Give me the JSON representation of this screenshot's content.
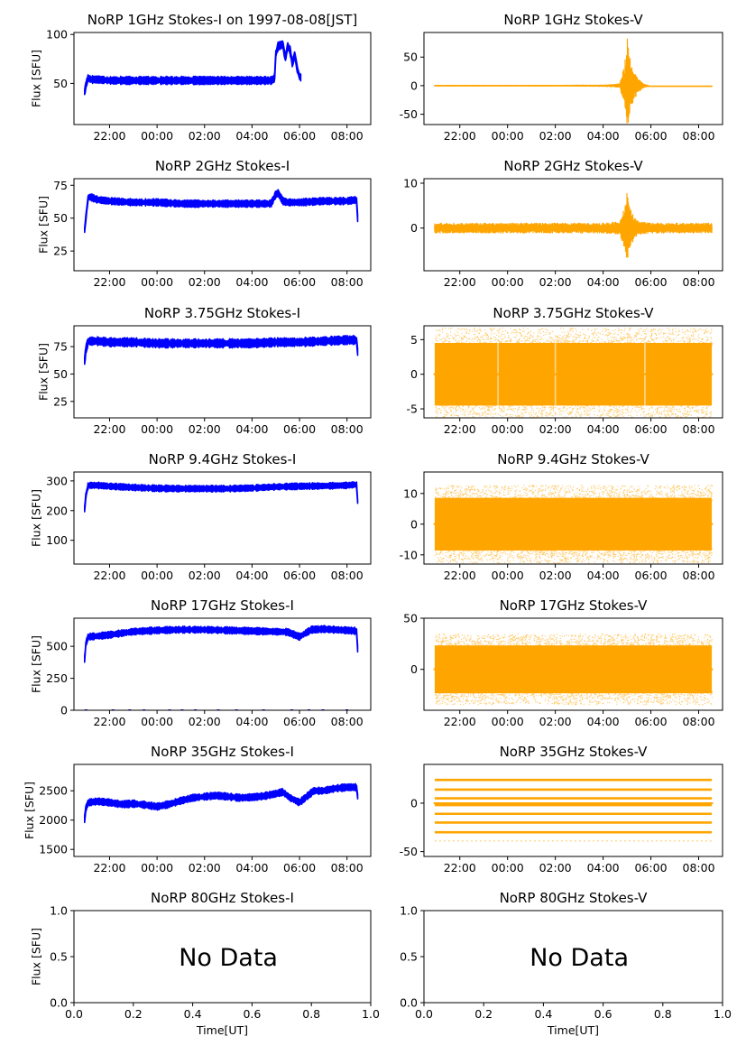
{
  "chart_data": [
    {
      "id": "i1",
      "type": "line",
      "title": "NoRP 1GHz Stokes-I on 1997-08-08[JST]",
      "ylabel": "Flux [SFU]",
      "xlabel": "",
      "color": "#0000ff",
      "xlim": [
        20.5,
        33
      ],
      "ylim": [
        8,
        102
      ],
      "yticks": [
        50,
        100
      ],
      "xticks": [
        {
          "v": 22,
          "l": "22:00"
        },
        {
          "v": 24,
          "l": "00:00"
        },
        {
          "v": 26,
          "l": "02:00"
        },
        {
          "v": 28,
          "l": "04:00"
        },
        {
          "v": 30,
          "l": "06:00"
        },
        {
          "v": 32,
          "l": "08:00"
        }
      ],
      "series": [
        {
          "x": [
            20.95,
            21.0,
            21.1,
            21.2,
            21.5,
            22,
            23,
            24,
            25,
            26,
            27,
            28,
            28.8,
            28.95,
            29.0,
            29.1,
            29.3,
            29.4,
            29.5,
            29.6,
            29.7,
            29.8,
            29.9,
            30.0,
            30.05
          ],
          "y": [
            41,
            48,
            56,
            54,
            54,
            53,
            53,
            53,
            53,
            53,
            53,
            53,
            53,
            55,
            80,
            88,
            90,
            75,
            88,
            84,
            70,
            80,
            65,
            57,
            56
          ],
          "band": 3
        }
      ]
    },
    {
      "id": "v1",
      "type": "line",
      "title": "NoRP 1GHz Stokes-V",
      "ylabel": "",
      "xlabel": "",
      "color": "#ffa500",
      "xlim": [
        20.5,
        33
      ],
      "ylim": [
        -68,
        93
      ],
      "yticks": [
        -50,
        0,
        50
      ],
      "xticks": [
        {
          "v": 22,
          "l": "22:00"
        },
        {
          "v": 24,
          "l": "00:00"
        },
        {
          "v": 26,
          "l": "02:00"
        },
        {
          "v": 28,
          "l": "04:00"
        },
        {
          "v": 30,
          "l": "06:00"
        },
        {
          "v": 32,
          "l": "08:00"
        }
      ],
      "series": [
        {
          "x": [
            20.95,
            22,
            24,
            26,
            28,
            28.7,
            28.9,
            29.0,
            29.05,
            29.15,
            29.3,
            29.5,
            29.7,
            30,
            31,
            32,
            32.55
          ],
          "y": [
            0,
            0,
            0,
            0,
            0,
            0,
            0,
            0,
            0,
            0,
            0,
            0,
            0,
            -1,
            -1,
            -1,
            -1
          ],
          "amp": [
            1.5,
            1.5,
            1.5,
            1.5,
            2,
            4,
            40,
            85,
            80,
            50,
            25,
            12,
            4,
            1,
            1,
            1,
            1
          ]
        }
      ]
    },
    {
      "id": "i2",
      "type": "line",
      "title": "NoRP 2GHz Stokes-I",
      "ylabel": "Flux [SFU]",
      "xlabel": "",
      "color": "#0000ff",
      "xlim": [
        20.5,
        33
      ],
      "ylim": [
        10,
        80
      ],
      "yticks": [
        25,
        50,
        75
      ],
      "xticks": [
        {
          "v": 22,
          "l": "22:00"
        },
        {
          "v": 24,
          "l": "00:00"
        },
        {
          "v": 26,
          "l": "02:00"
        },
        {
          "v": 28,
          "l": "04:00"
        },
        {
          "v": 30,
          "l": "06:00"
        },
        {
          "v": 32,
          "l": "08:00"
        }
      ],
      "series": [
        {
          "x": [
            20.95,
            21.0,
            21.1,
            21.2,
            21.5,
            22,
            23,
            24,
            25,
            26,
            27,
            28,
            28.8,
            29.0,
            29.1,
            29.3,
            29.5,
            30,
            31,
            32,
            32.4,
            32.45
          ],
          "y": [
            41,
            50,
            66,
            66,
            64,
            63,
            62,
            62,
            61,
            61,
            61,
            61,
            61,
            68,
            69,
            63,
            62,
            62,
            63,
            63,
            64,
            50
          ],
          "band": 2
        }
      ]
    },
    {
      "id": "v2",
      "type": "line",
      "title": "NoRP 2GHz Stokes-V",
      "ylabel": "",
      "xlabel": "",
      "color": "#ffa500",
      "xlim": [
        20.5,
        33
      ],
      "ylim": [
        -9.5,
        11
      ],
      "yticks": [
        0,
        10
      ],
      "xticks": [
        {
          "v": 22,
          "l": "22:00"
        },
        {
          "v": 24,
          "l": "00:00"
        },
        {
          "v": 26,
          "l": "02:00"
        },
        {
          "v": 28,
          "l": "04:00"
        },
        {
          "v": 30,
          "l": "06:00"
        },
        {
          "v": 32,
          "l": "08:00"
        }
      ],
      "series": [
        {
          "x": [
            20.95,
            22,
            24,
            26,
            28,
            28.7,
            28.9,
            29.0,
            29.1,
            29.3,
            29.5,
            30,
            31,
            32,
            32.55
          ],
          "y": [
            0,
            0,
            0,
            0,
            0,
            0,
            0,
            0,
            0,
            0,
            0,
            0,
            0,
            0,
            0
          ],
          "amp": [
            1.2,
            1.2,
            1.2,
            1.2,
            1.2,
            1.5,
            5,
            8,
            5,
            2.5,
            1.5,
            1.2,
            1.2,
            1.2,
            1.2
          ]
        }
      ]
    },
    {
      "id": "i3",
      "type": "line",
      "title": "NoRP 3.75GHz Stokes-I",
      "ylabel": "Flux [SFU]",
      "xlabel": "",
      "color": "#0000ff",
      "xlim": [
        20.5,
        33
      ],
      "ylim": [
        10,
        94
      ],
      "yticks": [
        25,
        50,
        75
      ],
      "xticks": [
        {
          "v": 22,
          "l": "22:00"
        },
        {
          "v": 24,
          "l": "00:00"
        },
        {
          "v": 26,
          "l": "02:00"
        },
        {
          "v": 28,
          "l": "04:00"
        },
        {
          "v": 30,
          "l": "06:00"
        },
        {
          "v": 32,
          "l": "08:00"
        }
      ],
      "series": [
        {
          "x": [
            20.95,
            21.0,
            21.1,
            21.5,
            22,
            23,
            24,
            25,
            26,
            27,
            28,
            29,
            30,
            31,
            32,
            32.4,
            32.45
          ],
          "y": [
            62,
            72,
            80,
            80,
            79,
            79,
            78,
            78,
            78,
            78,
            78,
            79,
            79,
            80,
            81,
            81,
            70
          ],
          "band": 3
        }
      ]
    },
    {
      "id": "v3",
      "type": "scatter",
      "title": "NoRP 3.75GHz Stokes-V",
      "ylabel": "",
      "xlabel": "",
      "color": "#ffa500",
      "xlim": [
        20.5,
        33
      ],
      "ylim": [
        -6.3,
        7
      ],
      "yticks": [
        -5,
        0,
        5
      ],
      "xticks": [
        {
          "v": 22,
          "l": "22:00"
        },
        {
          "v": 24,
          "l": "00:00"
        },
        {
          "v": 26,
          "l": "02:00"
        },
        {
          "v": 28,
          "l": "04:00"
        },
        {
          "v": 30,
          "l": "06:00"
        },
        {
          "v": 32,
          "l": "08:00"
        }
      ],
      "series": [
        {
          "xrange": [
            20.95,
            32.55
          ],
          "center": 0,
          "spread": 5.8,
          "gaps": [
            23.6,
            26.0,
            29.75
          ],
          "flat": 0
        }
      ]
    },
    {
      "id": "i4",
      "type": "line",
      "title": "NoRP 9.4GHz Stokes-I",
      "ylabel": "Flux [SFU]",
      "xlabel": "",
      "color": "#0000ff",
      "xlim": [
        20.5,
        33
      ],
      "ylim": [
        20,
        330
      ],
      "yticks": [
        100,
        200,
        300
      ],
      "xticks": [
        {
          "v": 22,
          "l": "22:00"
        },
        {
          "v": 24,
          "l": "00:00"
        },
        {
          "v": 26,
          "l": "02:00"
        },
        {
          "v": 28,
          "l": "04:00"
        },
        {
          "v": 30,
          "l": "06:00"
        },
        {
          "v": 32,
          "l": "08:00"
        }
      ],
      "series": [
        {
          "x": [
            20.95,
            21.0,
            21.1,
            21.5,
            22,
            23,
            24,
            25,
            26,
            27,
            28,
            29,
            30,
            31,
            32,
            32.4,
            32.45
          ],
          "y": [
            205,
            250,
            285,
            285,
            282,
            278,
            275,
            274,
            274,
            274,
            276,
            280,
            282,
            283,
            285,
            288,
            230
          ],
          "band": 8
        }
      ]
    },
    {
      "id": "v4",
      "type": "scatter",
      "title": "NoRP 9.4GHz Stokes-V",
      "ylabel": "",
      "xlabel": "",
      "color": "#ffa500",
      "xlim": [
        20.5,
        33
      ],
      "ylim": [
        -13,
        17
      ],
      "yticks": [
        -10,
        0,
        10
      ],
      "xticks": [
        {
          "v": 22,
          "l": "22:00"
        },
        {
          "v": 24,
          "l": "00:00"
        },
        {
          "v": 26,
          "l": "02:00"
        },
        {
          "v": 28,
          "l": "04:00"
        },
        {
          "v": 30,
          "l": "06:00"
        },
        {
          "v": 32,
          "l": "08:00"
        }
      ],
      "series": [
        {
          "xrange": [
            20.95,
            32.55
          ],
          "center": 0,
          "spread": 11,
          "gaps": [],
          "flat": 0
        }
      ]
    },
    {
      "id": "i5",
      "type": "line",
      "title": "NoRP 17GHz Stokes-I",
      "ylabel": "Flux [SFU]",
      "xlabel": "",
      "color": "#0000ff",
      "xlim": [
        20.5,
        33
      ],
      "ylim": [
        0,
        720
      ],
      "yticks": [
        0,
        250,
        500
      ],
      "xticks": [
        {
          "v": 22,
          "l": "22:00"
        },
        {
          "v": 24,
          "l": "00:00"
        },
        {
          "v": 26,
          "l": "02:00"
        },
        {
          "v": 28,
          "l": "04:00"
        },
        {
          "v": 30,
          "l": "06:00"
        },
        {
          "v": 32,
          "l": "08:00"
        }
      ],
      "series": [
        {
          "x": [
            20.95,
            21.0,
            21.1,
            21.5,
            22,
            23,
            24,
            25,
            26,
            27,
            28,
            29,
            29.5,
            30,
            30.5,
            31,
            32,
            32.4,
            32.45
          ],
          "y": [
            400,
            520,
            575,
            580,
            590,
            615,
            625,
            630,
            630,
            625,
            620,
            615,
            612,
            575,
            630,
            635,
            625,
            620,
            480
          ],
          "band": 20
        },
        {
          "x": [
            20.95,
            32.55
          ],
          "y": [
            0,
            0
          ],
          "band": 0,
          "dash": true
        }
      ]
    },
    {
      "id": "v5",
      "type": "scatter",
      "title": "NoRP 17GHz Stokes-V",
      "ylabel": "",
      "xlabel": "",
      "color": "#ffa500",
      "xlim": [
        20.5,
        33
      ],
      "ylim": [
        -40,
        50
      ],
      "yticks": [
        0,
        50
      ],
      "xticks": [
        {
          "v": 22,
          "l": "22:00"
        },
        {
          "v": 24,
          "l": "00:00"
        },
        {
          "v": 26,
          "l": "02:00"
        },
        {
          "v": 28,
          "l": "04:00"
        },
        {
          "v": 30,
          "l": "06:00"
        },
        {
          "v": 32,
          "l": "08:00"
        }
      ],
      "series": [
        {
          "xrange": [
            20.95,
            32.55
          ],
          "center": 0,
          "spread": 30,
          "gaps": [],
          "flat": 0
        }
      ]
    },
    {
      "id": "i6",
      "type": "line",
      "title": "NoRP 35GHz Stokes-I",
      "ylabel": "Flux [SFU]",
      "xlabel": "",
      "color": "#0000ff",
      "xlim": [
        20.5,
        33
      ],
      "ylim": [
        1380,
        2950
      ],
      "yticks": [
        1500,
        2000,
        2500
      ],
      "xticks": [
        {
          "v": 22,
          "l": "22:00"
        },
        {
          "v": 24,
          "l": "00:00"
        },
        {
          "v": 26,
          "l": "02:00"
        },
        {
          "v": 28,
          "l": "04:00"
        },
        {
          "v": 30,
          "l": "06:00"
        },
        {
          "v": 32,
          "l": "08:00"
        }
      ],
      "series": [
        {
          "x": [
            20.95,
            21.0,
            21.1,
            21.5,
            22,
            22.5,
            23,
            23.5,
            24,
            24.5,
            25,
            25.5,
            26,
            26.5,
            27,
            27.5,
            28,
            28.5,
            29,
            29.3,
            29.6,
            30,
            30.3,
            30.6,
            31,
            31.5,
            32,
            32.4,
            32.45
          ],
          "y": [
            2020,
            2200,
            2300,
            2320,
            2300,
            2270,
            2280,
            2260,
            2230,
            2270,
            2330,
            2380,
            2400,
            2420,
            2400,
            2380,
            2390,
            2410,
            2450,
            2480,
            2380,
            2300,
            2400,
            2500,
            2500,
            2540,
            2560,
            2560,
            2400
          ],
          "band": 45
        }
      ]
    },
    {
      "id": "v6",
      "type": "levels",
      "title": "NoRP 35GHz Stokes-V",
      "ylabel": "",
      "xlabel": "",
      "color": "#ffa500",
      "xlim": [
        20.5,
        33
      ],
      "ylim": [
        -55,
        40
      ],
      "yticks": [
        -50,
        0
      ],
      "xticks": [
        {
          "v": 22,
          "l": "22:00"
        },
        {
          "v": 24,
          "l": "00:00"
        },
        {
          "v": 26,
          "l": "02:00"
        },
        {
          "v": 28,
          "l": "04:00"
        },
        {
          "v": 30,
          "l": "06:00"
        },
        {
          "v": 32,
          "l": "08:00"
        }
      ],
      "series": [
        {
          "xrange": [
            20.95,
            32.55
          ],
          "levels": [
            24,
            14,
            5,
            -2,
            -11,
            -20,
            -30
          ],
          "faint": [
            -39
          ]
        }
      ]
    },
    {
      "id": "i7",
      "type": "empty",
      "title": "NoRP 80GHz Stokes-I",
      "ylabel": "Flux [SFU]",
      "xlabel": "Time[UT]",
      "annotation": "No Data",
      "xlim": [
        0,
        1
      ],
      "ylim": [
        0,
        1
      ],
      "yticks": [
        0.0,
        0.5,
        1.0
      ],
      "xticks": [
        {
          "v": 0,
          "l": "0.0"
        },
        {
          "v": 0.2,
          "l": "0.2"
        },
        {
          "v": 0.4,
          "l": "0.4"
        },
        {
          "v": 0.6,
          "l": "0.6"
        },
        {
          "v": 0.8,
          "l": "0.8"
        },
        {
          "v": 1,
          "l": "1.0"
        }
      ]
    },
    {
      "id": "v7",
      "type": "empty",
      "title": "NoRP 80GHz Stokes-V",
      "ylabel": "",
      "xlabel": "Time[UT]",
      "annotation": "No Data",
      "xlim": [
        0,
        1
      ],
      "ylim": [
        0,
        1
      ],
      "yticks": [
        0.0,
        0.5,
        1.0
      ],
      "xticks": [
        {
          "v": 0,
          "l": "0.0"
        },
        {
          "v": 0.2,
          "l": "0.2"
        },
        {
          "v": 0.4,
          "l": "0.4"
        },
        {
          "v": 0.6,
          "l": "0.6"
        },
        {
          "v": 0.8,
          "l": "0.8"
        },
        {
          "v": 1,
          "l": "1.0"
        }
      ]
    }
  ]
}
